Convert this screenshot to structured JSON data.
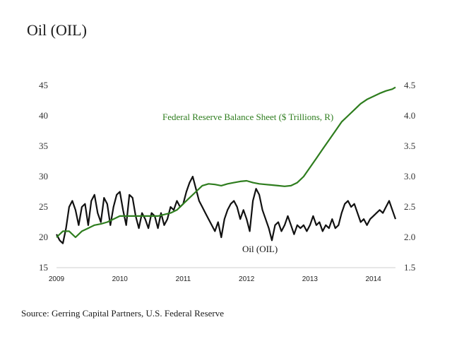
{
  "chart_data": {
    "type": "line",
    "title": "Oil (OIL)",
    "source": "Source: Gerring Capital Partners, U.S. Federal Reserve",
    "x_tick_labels": [
      "2009",
      "2010",
      "2011",
      "2012",
      "2013",
      "2014"
    ],
    "x_range": [
      2009.0,
      2014.35
    ],
    "y_left": {
      "range": [
        15,
        45
      ],
      "ticks": [
        15,
        20,
        25,
        30,
        35,
        40,
        45
      ]
    },
    "y_right": {
      "range": [
        1.5,
        4.5
      ],
      "ticks": [
        "1.5",
        "2.0",
        "2.5",
        "3.0",
        "3.5",
        "4.0",
        "4.5"
      ]
    },
    "grid": false,
    "series": [
      {
        "name": "Oil (OIL)",
        "axis": "left",
        "color": "#111111",
        "x": [
          2009.0,
          2009.05,
          2009.1,
          2009.15,
          2009.2,
          2009.25,
          2009.3,
          2009.35,
          2009.4,
          2009.45,
          2009.5,
          2009.55,
          2009.6,
          2009.65,
          2009.7,
          2009.75,
          2009.8,
          2009.85,
          2009.9,
          2009.95,
          2010.0,
          2010.05,
          2010.1,
          2010.15,
          2010.2,
          2010.25,
          2010.3,
          2010.35,
          2010.4,
          2010.45,
          2010.5,
          2010.55,
          2010.6,
          2010.65,
          2010.7,
          2010.75,
          2010.8,
          2010.85,
          2010.9,
          2010.95,
          2011.0,
          2011.05,
          2011.1,
          2011.15,
          2011.2,
          2011.25,
          2011.3,
          2011.35,
          2011.4,
          2011.45,
          2011.5,
          2011.55,
          2011.6,
          2011.65,
          2011.7,
          2011.75,
          2011.8,
          2011.85,
          2011.9,
          2011.95,
          2012.0,
          2012.05,
          2012.1,
          2012.15,
          2012.2,
          2012.25,
          2012.3,
          2012.35,
          2012.4,
          2012.45,
          2012.5,
          2012.55,
          2012.6,
          2012.65,
          2012.7,
          2012.75,
          2012.8,
          2012.85,
          2012.9,
          2012.95,
          2013.0,
          2013.05,
          2013.1,
          2013.15,
          2013.2,
          2013.25,
          2013.3,
          2013.35,
          2013.4,
          2013.45,
          2013.5,
          2013.55,
          2013.6,
          2013.65,
          2013.7,
          2013.75,
          2013.8,
          2013.85,
          2013.9,
          2013.95,
          2014.0,
          2014.05,
          2014.1,
          2014.15,
          2014.2,
          2014.25,
          2014.3,
          2014.35
        ],
        "y": [
          20.5,
          19.5,
          19.0,
          21.5,
          25.0,
          26.0,
          24.5,
          22.0,
          25.0,
          25.5,
          22.0,
          26.0,
          27.0,
          24.0,
          22.5,
          26.5,
          25.5,
          22.0,
          25.0,
          27.0,
          27.5,
          24.5,
          22.0,
          27.0,
          26.5,
          23.5,
          21.5,
          24.0,
          23.0,
          21.5,
          24.0,
          23.5,
          21.5,
          24.0,
          22.0,
          23.0,
          25.0,
          24.5,
          26.0,
          25.0,
          25.5,
          27.5,
          29.0,
          30.0,
          28.0,
          26.0,
          25.0,
          24.0,
          23.0,
          22.0,
          21.0,
          22.5,
          20.0,
          23.0,
          24.5,
          25.5,
          26.0,
          25.0,
          23.0,
          24.5,
          23.0,
          21.0,
          26.0,
          28.0,
          27.0,
          24.5,
          23.0,
          21.5,
          19.5,
          22.0,
          22.5,
          21.0,
          22.0,
          23.5,
          22.0,
          20.5,
          22.0,
          21.5,
          22.0,
          21.0,
          22.0,
          23.5,
          22.0,
          22.5,
          21.0,
          22.0,
          21.5,
          23.0,
          21.5,
          22.0,
          24.0,
          25.5,
          26.0,
          25.0,
          25.5,
          24.0,
          22.5,
          23.0,
          22.0,
          23.0,
          23.5,
          24.0,
          24.5,
          24.0,
          25.0,
          26.0,
          24.5,
          23.0
        ]
      },
      {
        "name": "Federal Reserve Balance Sheet ($ Trillions, R)",
        "axis": "right",
        "color": "#2e7d1e",
        "x": [
          2009.0,
          2009.1,
          2009.2,
          2009.3,
          2009.4,
          2009.5,
          2009.6,
          2009.7,
          2009.8,
          2009.9,
          2010.0,
          2010.2,
          2010.4,
          2010.6,
          2010.8,
          2010.9,
          2011.0,
          2011.1,
          2011.2,
          2011.3,
          2011.4,
          2011.5,
          2011.6,
          2011.7,
          2011.8,
          2011.9,
          2012.0,
          2012.1,
          2012.2,
          2012.3,
          2012.4,
          2012.5,
          2012.6,
          2012.7,
          2012.8,
          2012.9,
          2013.0,
          2013.1,
          2013.2,
          2013.3,
          2013.4,
          2013.5,
          2013.6,
          2013.7,
          2013.8,
          2013.9,
          2014.0,
          2014.1,
          2014.2,
          2014.3,
          2014.35
        ],
        "y": [
          2.0,
          2.1,
          2.1,
          2.0,
          2.1,
          2.15,
          2.2,
          2.22,
          2.25,
          2.3,
          2.35,
          2.35,
          2.35,
          2.35,
          2.4,
          2.45,
          2.55,
          2.65,
          2.75,
          2.85,
          2.88,
          2.87,
          2.85,
          2.88,
          2.9,
          2.92,
          2.93,
          2.9,
          2.88,
          2.87,
          2.86,
          2.85,
          2.84,
          2.85,
          2.9,
          3.0,
          3.15,
          3.3,
          3.45,
          3.6,
          3.75,
          3.9,
          4.0,
          4.1,
          4.2,
          4.27,
          4.32,
          4.37,
          4.41,
          4.44,
          4.47
        ]
      }
    ],
    "annotations": [
      {
        "text": "Federal Reserve Balance Sheet ($ Trillions, R)",
        "series": 1
      },
      {
        "text": "Oil (OIL)",
        "series": 0
      }
    ]
  }
}
